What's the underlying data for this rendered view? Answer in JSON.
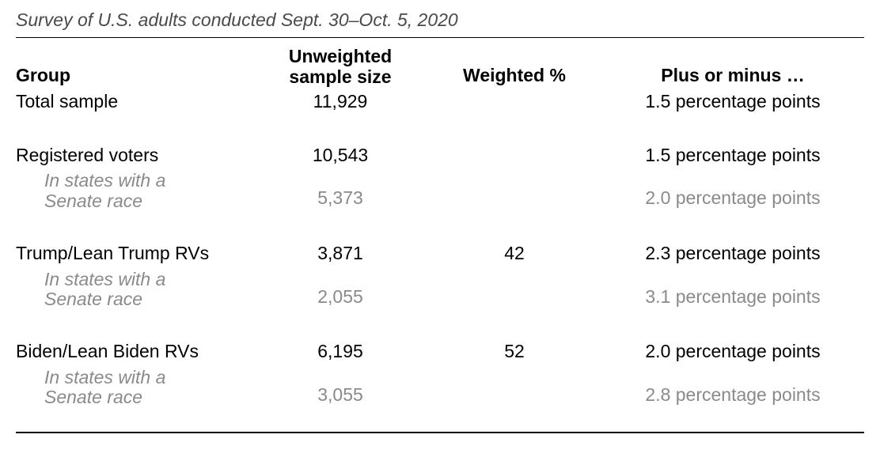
{
  "subtitle": "Survey of U.S. adults conducted Sept. 30–Oct. 5, 2020",
  "headers": {
    "group": "Group",
    "sample": "Unweighted sample size",
    "weighted": "Weighted %",
    "margin": "Plus or minus …"
  },
  "total": {
    "label": "Total sample",
    "sample": "11,929",
    "weighted": "",
    "margin": "1.5 percentage points"
  },
  "registered": {
    "label": "Registered voters",
    "sample": "10,543",
    "weighted": "",
    "margin": "1.5 percentage points",
    "sub_label_l1": "In states with a",
    "sub_label_l2": "Senate race",
    "sub_sample": "5,373",
    "sub_margin": "2.0 percentage points"
  },
  "trump": {
    "label": "Trump/Lean Trump RVs",
    "sample": "3,871",
    "weighted": "42",
    "margin": "2.3 percentage points",
    "sub_label_l1": "In states with a",
    "sub_label_l2": "Senate race",
    "sub_sample": "2,055",
    "sub_margin": "3.1 percentage points"
  },
  "biden": {
    "label": "Biden/Lean Biden RVs",
    "sample": "6,195",
    "weighted": "52",
    "margin": "2.0 percentage points",
    "sub_label_l1": "In states with a",
    "sub_label_l2": "Senate race",
    "sub_sample": "3,055",
    "sub_margin": "2.8 percentage points"
  },
  "style": {
    "text_color": "#000000",
    "sub_text_color": "#8a8a8a",
    "background": "#ffffff",
    "font_family": "Arial, Helvetica, sans-serif",
    "subtitle_fontsize": 23,
    "header_fontsize": 23,
    "body_fontsize": 23,
    "col_widths": {
      "group": 300,
      "sample": 220,
      "weighted": 220
    },
    "divider_top_color": "#000000",
    "divider_bottom_color": "#000000"
  }
}
